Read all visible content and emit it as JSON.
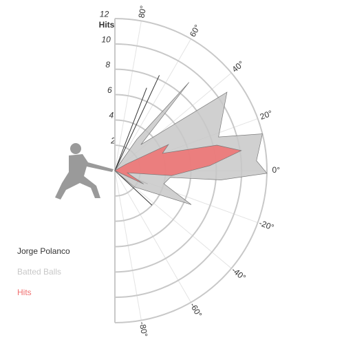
{
  "chart_data": {
    "type": "polar",
    "axis_label": "Hits",
    "rlim": [
      0,
      12
    ],
    "rticks": [
      2,
      4,
      6,
      8,
      10,
      12
    ],
    "thetalim": [
      -90,
      90
    ],
    "thetaticks": [
      {
        "value": 80,
        "label": "80°"
      },
      {
        "value": 60,
        "label": "60°"
      },
      {
        "value": 40,
        "label": "40°"
      },
      {
        "value": 20,
        "label": "20°"
      },
      {
        "value": 0,
        "label": "0°"
      },
      {
        "value": -20,
        "label": "-20°"
      },
      {
        "value": -40,
        "label": "-40°"
      },
      {
        "value": -60,
        "label": "-60°"
      },
      {
        "value": -80,
        "label": "-80°"
      }
    ],
    "series": [
      {
        "name": "Jorge Polanco",
        "color": "#333333",
        "style": "spokes",
        "angles": [
          69,
          65,
          -22,
          -43
        ],
        "values": [
          7,
          8.3,
          2.8,
          4
        ]
      },
      {
        "name": "Batted Balls",
        "color": "#c8c8c8",
        "style": "area",
        "angles": [
          -40,
          -24,
          -15,
          -7,
          -5,
          -1,
          4,
          14,
          18,
          35,
          45,
          50,
          55
        ],
        "values": [
          2,
          6.6,
          4,
          4.4,
          8.4,
          12,
          11.2,
          12,
          8.6,
          10.8,
          2.9,
          9.1,
          3
        ]
      },
      {
        "name": "Hits",
        "color": "#f07070",
        "style": "area",
        "angles": [
          -25,
          -10,
          -5,
          3,
          9,
          14,
          20,
          26,
          30
        ],
        "values": [
          2.5,
          1,
          4.5,
          7.5,
          10.1,
          8.3,
          4,
          4.7,
          1
        ]
      }
    ]
  }
}
